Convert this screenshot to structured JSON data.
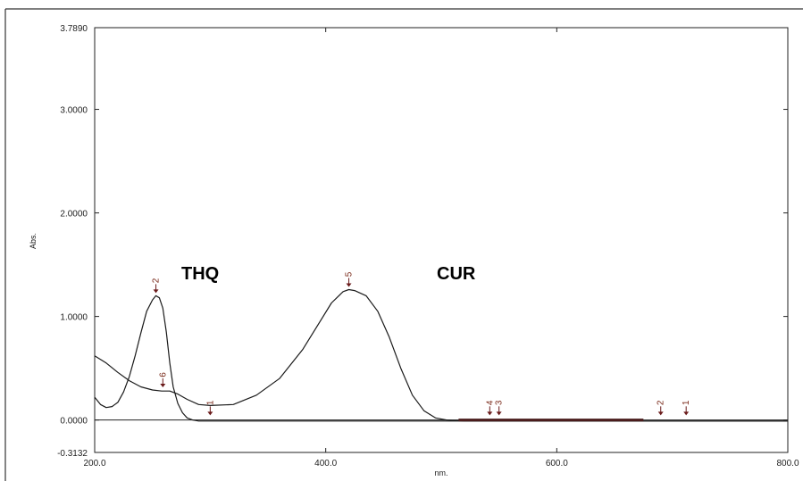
{
  "chart_data": {
    "type": "line",
    "xlabel": "nm.",
    "ylabel": "Abs.",
    "xlim": [
      200,
      800
    ],
    "ylim": [
      -0.3132,
      3.789
    ],
    "x_ticks": [
      "200.0",
      "400.0",
      "600.0",
      "800.0"
    ],
    "x_tick_values": [
      200,
      400,
      600,
      800
    ],
    "y_ticks": [
      "3.7890",
      "3.0000",
      "2.0000",
      "1.0000",
      "0.0000",
      "-0.3132"
    ],
    "y_tick_values": [
      3.789,
      3.0,
      2.0,
      1.0,
      0.0,
      -0.3132
    ],
    "annotations": [
      "THQ",
      "CUR"
    ],
    "series": [
      {
        "name": "",
        "x": [
          200,
          205,
          210,
          215,
          220,
          225,
          230,
          235,
          240,
          245,
          250,
          253,
          256,
          259,
          262,
          265,
          268,
          272,
          276,
          280,
          285,
          290,
          300,
          400,
          600,
          800
        ],
        "values": [
          0.22,
          0.15,
          0.12,
          0.13,
          0.17,
          0.27,
          0.42,
          0.62,
          0.84,
          1.05,
          1.16,
          1.2,
          1.18,
          1.08,
          0.85,
          0.55,
          0.32,
          0.16,
          0.07,
          0.02,
          0.0,
          -0.01,
          -0.01,
          -0.01,
          -0.01,
          -0.01
        ],
        "color": "#1a1a1a"
      },
      {
        "name": "",
        "x": [
          200,
          210,
          220,
          230,
          240,
          250,
          258,
          265,
          272,
          280,
          290,
          300,
          320,
          340,
          360,
          380,
          395,
          405,
          415,
          420,
          425,
          435,
          445,
          455,
          465,
          475,
          485,
          495,
          505,
          520,
          600,
          800
        ],
        "values": [
          0.62,
          0.55,
          0.46,
          0.38,
          0.32,
          0.29,
          0.28,
          0.28,
          0.25,
          0.2,
          0.15,
          0.14,
          0.15,
          0.24,
          0.4,
          0.68,
          0.95,
          1.13,
          1.24,
          1.26,
          1.25,
          1.2,
          1.05,
          0.8,
          0.5,
          0.24,
          0.09,
          0.02,
          0.0,
          -0.01,
          -0.01,
          -0.01
        ],
        "color": "#1a1a1a"
      }
    ],
    "peak_markers": [
      {
        "label": "2",
        "x": 253,
        "y": 1.2
      },
      {
        "label": "6",
        "x": 259,
        "y": 0.29
      },
      {
        "label": "1",
        "x": 300,
        "y": 0.02
      },
      {
        "label": "5",
        "x": 420,
        "y": 1.26
      },
      {
        "label": "4",
        "x": 542,
        "y": 0.02
      },
      {
        "label": "3",
        "x": 550,
        "y": 0.02
      },
      {
        "label": "2",
        "x": 690,
        "y": 0.02
      },
      {
        "label": "1",
        "x": 712,
        "y": 0.02
      }
    ]
  }
}
